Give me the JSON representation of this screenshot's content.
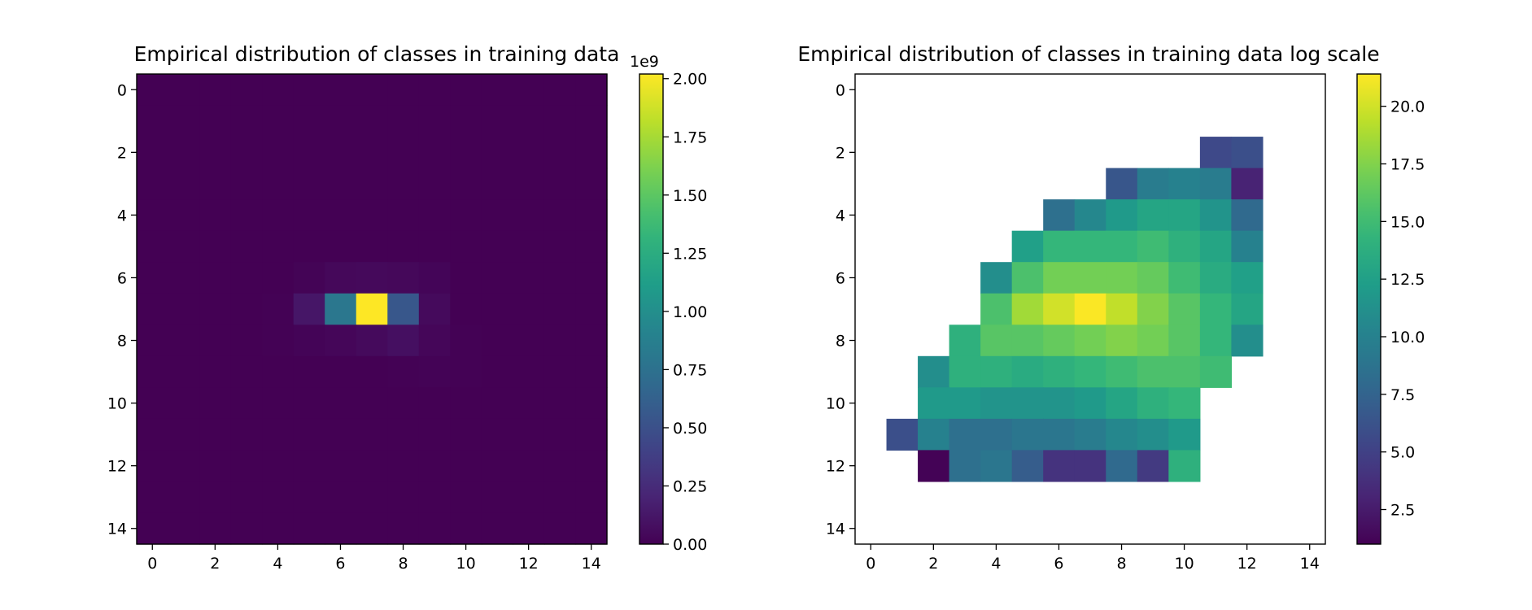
{
  "chart_data": [
    {
      "type": "heatmap",
      "title": "Empirical distribution of classes in training data",
      "xlim": [
        -0.5,
        14.5
      ],
      "ylim": [
        14.5,
        -0.5
      ],
      "xticks": [
        0,
        2,
        4,
        6,
        8,
        10,
        12,
        14
      ],
      "yticks": [
        0,
        2,
        4,
        6,
        8,
        10,
        12,
        14
      ],
      "colormap": "viridis",
      "colorbar": {
        "range": [
          0,
          2.02
        ],
        "ticks": [
          0.0,
          0.25,
          0.5,
          0.75,
          1.0,
          1.25,
          1.5,
          1.75,
          2.0
        ],
        "tick_labels": [
          "0.00",
          "0.25",
          "0.50",
          "0.75",
          "1.00",
          "1.25",
          "1.50",
          "1.75",
          "2.00"
        ],
        "offset_label": "1e9"
      },
      "cells": [
        [
          0.0,
          0.0,
          0.0,
          0.0,
          0.0,
          0.0,
          0.0,
          0.0,
          0.0,
          0.0,
          0.0,
          0.0,
          0.0,
          0.0,
          0.0
        ],
        [
          0.0,
          0.0,
          0.0,
          0.0,
          0.0,
          0.0,
          0.0,
          0.0,
          0.0,
          0.0,
          0.0,
          0.0,
          0.0,
          0.0,
          0.0
        ],
        [
          0.0,
          0.0,
          0.0,
          0.0,
          0.0,
          0.0,
          0.0,
          0.0,
          0.0,
          0.0,
          0.0,
          0.0,
          0.0,
          0.0,
          0.0
        ],
        [
          0.0,
          0.0,
          0.0,
          0.0,
          0.0,
          0.0,
          0.0,
          0.0,
          0.0,
          0.0,
          0.0,
          0.0,
          0.0,
          0.0,
          0.0
        ],
        [
          0.0,
          0.0,
          0.0,
          0.0,
          0.0,
          0.0,
          0.0,
          0.0,
          0.0,
          0.0,
          0.0,
          0.0,
          0.0,
          0.0,
          0.0
        ],
        [
          0.0,
          0.0,
          0.0,
          0.0,
          0.0,
          0.0,
          0.0,
          0.0,
          0.0,
          0.0,
          0.0,
          0.0,
          0.0,
          0.0,
          0.0
        ],
        [
          0.0,
          0.0,
          0.0,
          0.0,
          0.0,
          0.015,
          0.04,
          0.045,
          0.04,
          0.025,
          0.0,
          0.0,
          0.0,
          0.0,
          0.0
        ],
        [
          0.0,
          0.0,
          0.0,
          0.0,
          0.008,
          0.12,
          0.8,
          2.02,
          0.55,
          0.05,
          0.0,
          0.0,
          0.0,
          0.0,
          0.0
        ],
        [
          0.0,
          0.0,
          0.0,
          0.0,
          0.005,
          0.02,
          0.03,
          0.05,
          0.08,
          0.03,
          0.004,
          0.0,
          0.0,
          0.0,
          0.0
        ],
        [
          0.0,
          0.0,
          0.0,
          0.0,
          0.0,
          0.0,
          0.0,
          0.0,
          0.004,
          0.01,
          0.004,
          0.0,
          0.0,
          0.0,
          0.0
        ],
        [
          0.0,
          0.0,
          0.0,
          0.0,
          0.0,
          0.0,
          0.0,
          0.0,
          0.0,
          0.0,
          0.0,
          0.0,
          0.0,
          0.0,
          0.0
        ],
        [
          0.0,
          0.0,
          0.0,
          0.0,
          0.0,
          0.0,
          0.0,
          0.0,
          0.0,
          0.0,
          0.0,
          0.0,
          0.0,
          0.0,
          0.0
        ],
        [
          0.0,
          0.0,
          0.0,
          0.0,
          0.0,
          0.0,
          0.0,
          0.0,
          0.0,
          0.0,
          0.0,
          0.0,
          0.0,
          0.0,
          0.0
        ],
        [
          0.0,
          0.0,
          0.0,
          0.0,
          0.0,
          0.0,
          0.0,
          0.0,
          0.0,
          0.0,
          0.0,
          0.0,
          0.0,
          0.0,
          0.0
        ],
        [
          0.0,
          0.0,
          0.0,
          0.0,
          0.0,
          0.0,
          0.0,
          0.0,
          0.0,
          0.0,
          0.0,
          0.0,
          0.0,
          0.0,
          0.0
        ]
      ]
    },
    {
      "type": "heatmap",
      "title": "Empirical distribution of classes in training data log scale",
      "xlim": [
        -0.5,
        14.5
      ],
      "ylim": [
        14.5,
        -0.5
      ],
      "xticks": [
        0,
        2,
        4,
        6,
        8,
        10,
        12,
        14
      ],
      "yticks": [
        0,
        2,
        4,
        6,
        8,
        10,
        12,
        14
      ],
      "colormap": "viridis",
      "colorbar": {
        "range": [
          1.0,
          21.4
        ],
        "ticks": [
          2.5,
          5.0,
          7.5,
          10.0,
          12.5,
          15.0,
          17.5,
          20.0
        ],
        "tick_labels": [
          "2.5",
          "5.0",
          "7.5",
          "10.0",
          "12.5",
          "15.0",
          "17.5",
          "20.0"
        ]
      },
      "cells": [
        [
          null,
          null,
          null,
          null,
          null,
          null,
          null,
          null,
          null,
          null,
          null,
          null,
          null,
          null,
          null
        ],
        [
          null,
          null,
          null,
          null,
          null,
          null,
          null,
          null,
          null,
          null,
          null,
          null,
          null,
          null,
          null
        ],
        [
          null,
          null,
          null,
          null,
          null,
          null,
          null,
          null,
          null,
          null,
          null,
          5.5,
          6.0,
          null,
          null
        ],
        [
          null,
          null,
          null,
          null,
          null,
          null,
          null,
          null,
          6.5,
          9.5,
          10.0,
          9.5,
          3.0,
          null,
          null
        ],
        [
          null,
          null,
          null,
          null,
          null,
          null,
          8.5,
          10.5,
          12.0,
          13.0,
          13.0,
          11.5,
          8.0,
          null,
          null
        ],
        [
          null,
          null,
          null,
          null,
          null,
          12.5,
          14.5,
          14.5,
          14.5,
          15.0,
          14.0,
          13.0,
          10.0,
          null,
          null
        ],
        [
          null,
          null,
          null,
          null,
          11.0,
          15.5,
          17.0,
          17.0,
          17.0,
          16.5,
          15.0,
          13.5,
          12.5,
          null,
          null
        ],
        [
          null,
          null,
          null,
          null,
          15.5,
          18.5,
          20.0,
          21.3,
          19.5,
          17.5,
          16.0,
          14.5,
          13.0,
          null,
          null
        ],
        [
          null,
          null,
          null,
          14.0,
          16.0,
          16.0,
          16.5,
          17.0,
          17.5,
          17.0,
          16.0,
          14.5,
          11.0,
          null,
          null
        ],
        [
          null,
          null,
          11.0,
          14.0,
          14.0,
          13.5,
          14.0,
          14.5,
          15.0,
          15.5,
          15.5,
          15.0,
          null,
          null,
          null
        ],
        [
          null,
          null,
          12.0,
          12.0,
          11.5,
          11.5,
          11.5,
          12.0,
          13.0,
          14.0,
          14.5,
          null,
          null,
          null,
          null
        ],
        [
          null,
          6.0,
          10.0,
          8.5,
          8.5,
          9.0,
          9.0,
          9.5,
          10.5,
          11.0,
          12.0,
          null,
          null,
          null,
          null
        ],
        [
          null,
          null,
          1.1,
          8.5,
          9.0,
          7.0,
          4.0,
          4.0,
          8.0,
          4.5,
          14.0,
          null,
          null,
          null,
          null
        ],
        [
          null,
          null,
          null,
          null,
          null,
          null,
          null,
          null,
          null,
          null,
          null,
          null,
          null,
          null,
          null
        ],
        [
          null,
          null,
          null,
          null,
          null,
          null,
          null,
          null,
          null,
          null,
          null,
          null,
          null,
          null,
          null
        ]
      ]
    }
  ]
}
